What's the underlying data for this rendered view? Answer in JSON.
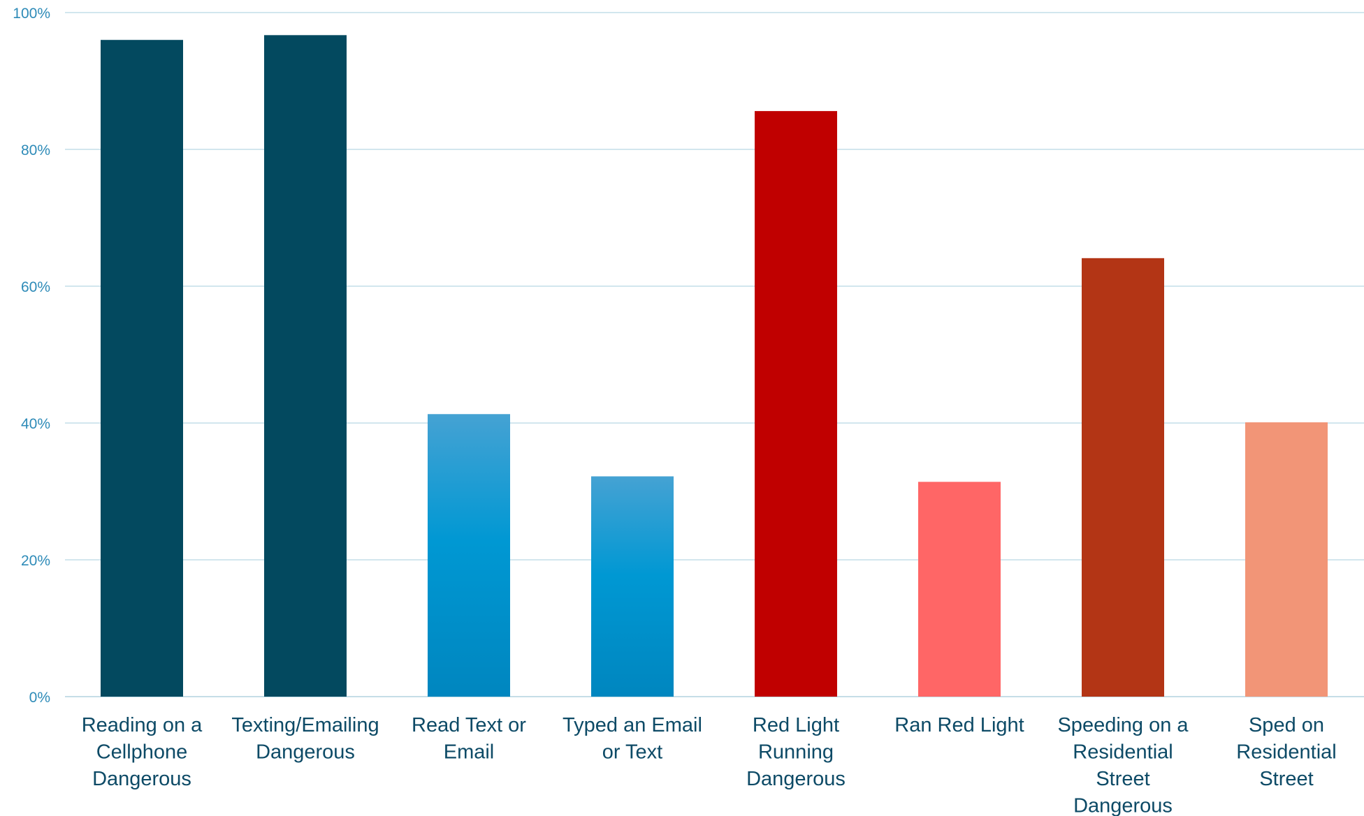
{
  "chart_data": {
    "type": "bar",
    "title": "",
    "xlabel": "",
    "ylabel": "",
    "ylim": [
      0,
      100
    ],
    "yticks": [
      0,
      20,
      40,
      60,
      80,
      100
    ],
    "ytick_labels": [
      "0%",
      "20%",
      "40%",
      "60%",
      "80%",
      "100%"
    ],
    "grid": true,
    "legend": "none",
    "categories": [
      [
        "Reading on a",
        "Cellphone",
        "Dangerous"
      ],
      [
        "Texting/Emailing",
        "Dangerous"
      ],
      [
        "Read Text or",
        "Email"
      ],
      [
        "Typed an Email",
        "or Text"
      ],
      [
        "Red Light",
        "Running",
        "Dangerous"
      ],
      [
        "Ran Red Light"
      ],
      [
        "Speeding on a",
        "Residential",
        "Street",
        "Dangerous"
      ],
      [
        "Sped on",
        "Residential",
        "Street"
      ]
    ],
    "values": [
      96,
      96.7,
      41.3,
      32.2,
      85.6,
      31.4,
      64.1,
      40.1
    ],
    "bar_colors": [
      "#03495f",
      "#03495f",
      "gradient-blue",
      "gradient-blue",
      "#c00000",
      "#ff6666",
      "#b33515",
      "#f29577"
    ]
  },
  "colors": {
    "grid": "#d2e6ee",
    "ytick_text": "#2e8bb8",
    "xtick_text": "#0d4a66",
    "gradient_blue_top": "#45a2d3",
    "gradient_blue_mid": "#0098d3",
    "gradient_blue_bottom": "#0086bf"
  }
}
